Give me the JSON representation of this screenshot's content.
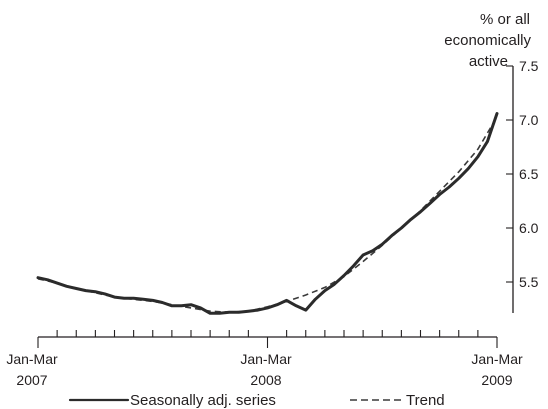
{
  "chart_data": {
    "type": "line",
    "ylabel_lines": [
      "% or all",
      "economically",
      "active"
    ],
    "x_tick_labels": [
      {
        "line1": "Jan-Mar",
        "line2": "2007"
      },
      {
        "line1": "Jan-Mar",
        "line2": "2008"
      },
      {
        "line1": "Jan-Mar",
        "line2": "2009"
      }
    ],
    "y_ticks": [
      5.5,
      6.0,
      6.5,
      7.0,
      7.5
    ],
    "y_tick_labels": [
      "5.5",
      "6.0",
      "6.5",
      "7.0",
      "7.5"
    ],
    "ylim": [
      5.2,
      7.5
    ],
    "xlim": [
      0,
      24
    ],
    "period_x": [
      0,
      12,
      24
    ],
    "x_unit": "months since Jan-Mar 2007",
    "series": [
      {
        "name": "Seasonally adj. series",
        "style": "solid",
        "color": "#2b2b2b",
        "x": [
          0,
          0.5,
          1,
          1.5,
          2,
          2.5,
          3,
          3.5,
          4,
          4.5,
          5,
          5.5,
          6,
          6.5,
          7,
          7.5,
          8,
          8.5,
          9,
          9.5,
          10,
          10.5,
          11,
          11.5,
          12,
          12.5,
          13,
          13.5,
          14,
          14.5,
          15,
          15.5,
          16,
          16.5,
          17,
          17.5,
          18,
          18.5,
          19,
          19.5,
          20,
          20.5,
          21,
          21.5,
          22,
          22.5,
          23,
          23.5,
          24
        ],
        "y": [
          5.54,
          5.52,
          5.49,
          5.46,
          5.44,
          5.42,
          5.41,
          5.39,
          5.36,
          5.35,
          5.35,
          5.34,
          5.33,
          5.31,
          5.28,
          5.28,
          5.29,
          5.26,
          5.21,
          5.21,
          5.22,
          5.22,
          5.23,
          5.24,
          5.26,
          5.29,
          5.33,
          5.28,
          5.24,
          5.34,
          5.42,
          5.48,
          5.56,
          5.65,
          5.75,
          5.79,
          5.85,
          5.93,
          6.0,
          6.08,
          6.15,
          6.23,
          6.31,
          6.38,
          6.46,
          6.55,
          6.66,
          6.8,
          7.06
        ]
      },
      {
        "name": "Trend",
        "style": "dashed",
        "color": "#3a3a3a",
        "x": [
          0,
          1,
          2,
          3,
          4,
          5,
          6,
          7,
          8,
          9,
          10,
          11,
          12,
          13,
          14,
          15,
          16,
          17,
          18,
          19,
          20,
          21,
          22,
          23,
          24
        ],
        "y": [
          5.53,
          5.49,
          5.44,
          5.4,
          5.36,
          5.34,
          5.32,
          5.29,
          5.26,
          5.23,
          5.22,
          5.23,
          5.27,
          5.32,
          5.38,
          5.45,
          5.55,
          5.69,
          5.84,
          6.0,
          6.16,
          6.34,
          6.52,
          6.73,
          7.03
        ]
      }
    ],
    "legend_position": "bottom",
    "grid": false
  }
}
